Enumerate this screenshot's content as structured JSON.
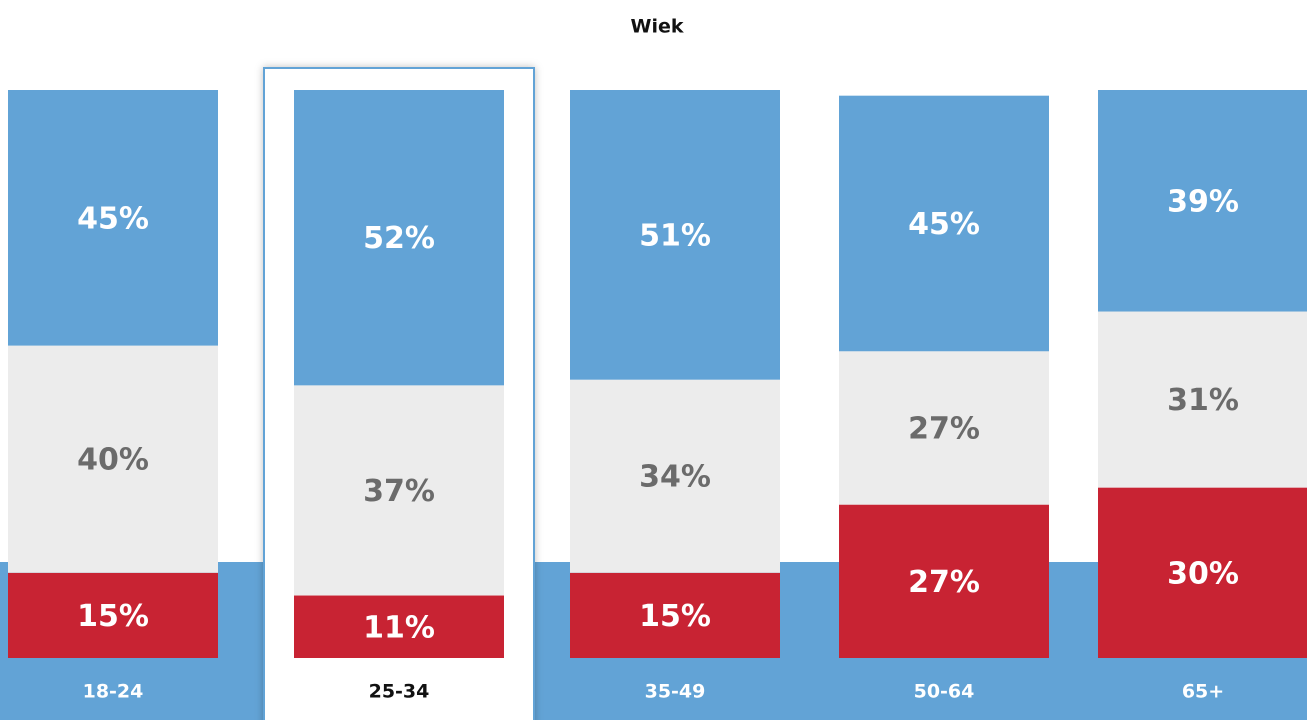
{
  "chart_data": {
    "type": "stacked-bar",
    "title": "Wiek",
    "categories": [
      "18-24",
      "25-34",
      "35-49",
      "50-64",
      "65+"
    ],
    "series": [
      {
        "color": "#c82333",
        "label_color": "#ffffff",
        "values": [
          15,
          11,
          15,
          27,
          30
        ],
        "value_labels": [
          "15%",
          "11%",
          "15%",
          "27%",
          "30%"
        ]
      },
      {
        "color": "#ececec",
        "label_color": "#6b6b6b",
        "values": [
          40,
          37,
          34,
          27,
          31
        ],
        "value_labels": [
          "40%",
          "37%",
          "34%",
          "27%",
          "31%"
        ]
      },
      {
        "color": "#62a3d6",
        "label_color": "#ffffff",
        "values": [
          45,
          52,
          51,
          45,
          39
        ],
        "value_labels": [
          "45%",
          "52%",
          "51%",
          "45%",
          "39%"
        ]
      }
    ],
    "ylim": [
      0,
      100
    ],
    "selected_index": 1
  }
}
